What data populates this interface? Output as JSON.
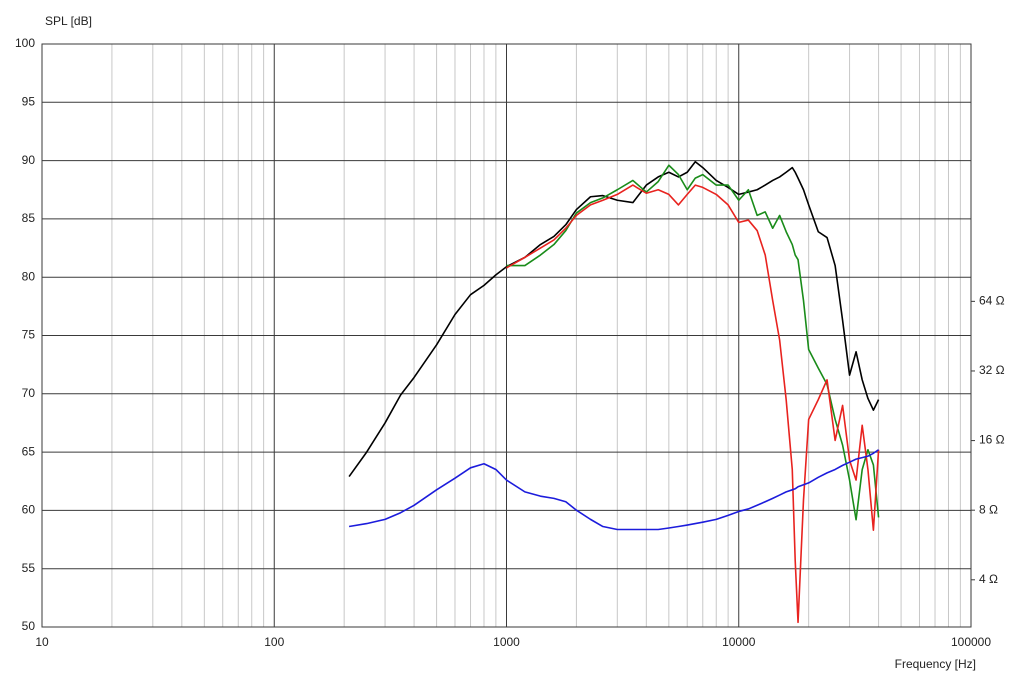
{
  "chart_data": {
    "type": "line",
    "y_label": "SPL [dB]",
    "x_label": "Frequency [Hz]",
    "x_scale": "log",
    "y2_scale": "log",
    "grid": true,
    "minor_grid": true,
    "xlim": [
      10,
      100000
    ],
    "xticks": [
      10,
      100,
      1000,
      10000,
      100000
    ],
    "ylim": [
      50,
      100
    ],
    "yticks": [
      50,
      55,
      60,
      65,
      70,
      75,
      80,
      85,
      90,
      95,
      100
    ],
    "y2lim": [
      2.5,
      830
    ],
    "y2ticks": [
      {
        "value": 4,
        "label": "4 Ω"
      },
      {
        "value": 8,
        "label": "8 Ω"
      },
      {
        "value": 16,
        "label": "16 Ω"
      },
      {
        "value": 32,
        "label": "32 Ω"
      },
      {
        "value": 64,
        "label": "64 Ω"
      }
    ],
    "x": [
      210,
      250,
      300,
      350,
      400,
      500,
      600,
      700,
      800,
      900,
      1000,
      1200,
      1400,
      1600,
      1800,
      2000,
      2300,
      2600,
      3000,
      3500,
      4000,
      4500,
      5000,
      5500,
      6000,
      6500,
      7000,
      8000,
      9000,
      10000,
      11000,
      12000,
      13000,
      14000,
      15000,
      16000,
      17000,
      17500,
      18000,
      19000,
      20000,
      22000,
      24000,
      26000,
      28000,
      30000,
      32000,
      34000,
      36000,
      38000,
      40000
    ],
    "series": [
      {
        "color": "#000000",
        "values": [
          62.9,
          65.0,
          67.5,
          69.9,
          71.4,
          74.2,
          76.8,
          78.5,
          79.3,
          80.2,
          80.9,
          81.7,
          82.8,
          83.5,
          84.5,
          85.8,
          86.9,
          87.0,
          86.6,
          86.4,
          87.9,
          88.6,
          89.0,
          88.6,
          89.0,
          89.9,
          89.4,
          88.3,
          87.7,
          87.1,
          87.3,
          87.5,
          87.9,
          88.3,
          88.6,
          89.0,
          89.4,
          89.0,
          88.5,
          87.5,
          86.2,
          83.9,
          83.4,
          81.0,
          76.3,
          71.6,
          73.6,
          71.2,
          69.6,
          68.6,
          69.5
        ]
      },
      {
        "color": "#1a8c1a",
        "values": [
          null,
          null,
          null,
          null,
          null,
          null,
          null,
          null,
          null,
          null,
          81.0,
          81.0,
          81.9,
          82.8,
          84.0,
          85.5,
          86.4,
          86.8,
          87.5,
          88.3,
          87.3,
          88.2,
          89.6,
          88.8,
          87.5,
          88.5,
          88.8,
          87.9,
          87.9,
          86.6,
          87.5,
          85.3,
          85.6,
          84.2,
          85.3,
          83.9,
          82.8,
          81.9,
          81.5,
          78.0,
          73.8,
          72.2,
          70.8,
          67.8,
          65.6,
          62.6,
          59.2,
          63.5,
          65.2,
          63.9,
          59.4
        ]
      },
      {
        "color": "#e8231f",
        "values": [
          null,
          null,
          null,
          null,
          null,
          null,
          null,
          null,
          null,
          null,
          80.8,
          81.7,
          82.5,
          83.2,
          84.2,
          85.3,
          86.2,
          86.6,
          87.1,
          87.9,
          87.2,
          87.5,
          87.1,
          86.2,
          87.1,
          87.9,
          87.7,
          87.1,
          86.2,
          84.7,
          84.9,
          84.0,
          81.9,
          78.0,
          74.6,
          69.5,
          63.5,
          55.7,
          50.4,
          60.9,
          67.8,
          69.5,
          71.2,
          66.0,
          69.0,
          64.3,
          62.6,
          67.3,
          63.5,
          58.3,
          65.2
        ]
      },
      {
        "color": "#1c1cdc",
        "axis": "y2",
        "values": [
          6.8,
          7.0,
          7.3,
          7.8,
          8.4,
          9.8,
          11.0,
          12.2,
          12.7,
          12.0,
          10.8,
          9.6,
          9.2,
          9.0,
          8.7,
          8.0,
          7.3,
          6.8,
          6.6,
          6.6,
          6.6,
          6.6,
          6.7,
          6.8,
          6.9,
          7.0,
          7.1,
          7.3,
          7.6,
          7.9,
          8.1,
          8.4,
          8.7,
          9.0,
          9.3,
          9.6,
          9.8,
          9.9,
          10.1,
          10.3,
          10.5,
          11.1,
          11.6,
          12.0,
          12.5,
          12.9,
          13.3,
          13.5,
          13.7,
          14.1,
          14.6
        ]
      }
    ]
  }
}
